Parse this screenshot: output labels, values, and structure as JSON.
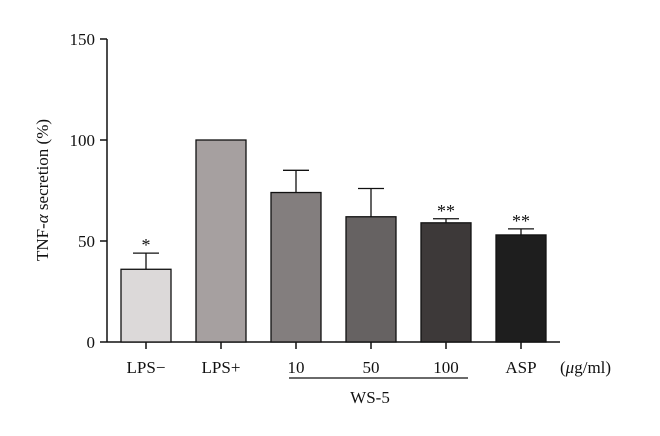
{
  "chart_data": {
    "type": "bar",
    "ylabel_prefix": "TNF-",
    "ylabel_symbol": "α",
    "ylabel_suffix": " secretion (%)",
    "xunit_symbol": "μ",
    "xunit_suffix": "g/ml)",
    "xunit_prefix": "(",
    "ylim": [
      0,
      150
    ],
    "yticks": [
      "0",
      "50",
      "100",
      "150"
    ],
    "categories": [
      "LPS−",
      "LPS+",
      "10",
      "50",
      "100",
      "ASP"
    ],
    "values": [
      36,
      100,
      74,
      62,
      59,
      53
    ],
    "errors": [
      8,
      0,
      11,
      14,
      2,
      3
    ],
    "significance": [
      "*",
      "",
      "",
      "",
      "**",
      "**"
    ],
    "colors": [
      "#dcd9d9",
      "#a6a0a0",
      "#837e7e",
      "#666262",
      "#3d3939",
      "#1e1e1e"
    ],
    "group_label": "WS-5",
    "group_categories": [
      2,
      4
    ],
    "grid": false
  }
}
